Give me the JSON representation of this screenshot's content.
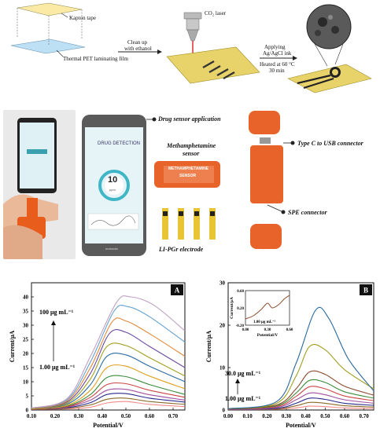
{
  "fabrication": {
    "kapton_label": "Kapton tape",
    "pet_label": "Thermal PET laminating film",
    "cleanup_label_1": "Clean up",
    "cleanup_label_2": "with ethanol",
    "laser_label": "CO₂ laser",
    "apply_label_1": "Applying",
    "apply_label_2": "Ag/AgCl ink",
    "heat_label_1": "Heated at 60 °C",
    "heat_label_2": "30 min"
  },
  "device": {
    "app_label": "Drug sensor application",
    "sensor_label_1": "Methamphetamine",
    "sensor_label_2": "sensor",
    "electrode_label": "LI-PGr electrode",
    "typec_label": "Type C to USB connector",
    "spe_label": "SPE connector",
    "screen_title": "DRUG DETECTION",
    "screen_value": "10",
    "screen_unit": "ppm",
    "brand_text": "motorola",
    "sensor_text_1": "METHAMPHETAMINE",
    "sensor_text_2": "SENSOR"
  },
  "chart_data": [
    {
      "type": "line",
      "panel": "A",
      "xlabel": "Potential/V",
      "ylabel": "Current/μA",
      "xlim": [
        0.1,
        0.75
      ],
      "ylim": [
        0,
        45
      ],
      "xticks": [
        "0.10",
        "0.20",
        "0.30",
        "0.40",
        "0.50",
        "0.60",
        "0.70"
      ],
      "yticks": [
        "0",
        "5",
        "10",
        "15",
        "20",
        "25",
        "30",
        "35",
        "40"
      ],
      "annotation_high": "100 μg mL⁻¹",
      "annotation_low": "1.00 μg mL⁻¹",
      "series": [
        {
          "color": "#f28a8a",
          "values": [
            [
              0.1,
              0.2
            ],
            [
              0.25,
              0.4
            ],
            [
              0.35,
              1.0
            ],
            [
              0.42,
              2.5
            ],
            [
              0.5,
              3.0
            ],
            [
              0.6,
              2.0
            ],
            [
              0.75,
              1.2
            ]
          ]
        },
        {
          "color": "#8a6a2a",
          "values": [
            [
              0.1,
              0.2
            ],
            [
              0.25,
              0.6
            ],
            [
              0.35,
              1.8
            ],
            [
              0.42,
              3.8
            ],
            [
              0.5,
              4.2
            ],
            [
              0.6,
              3.0
            ],
            [
              0.75,
              2.0
            ]
          ]
        },
        {
          "color": "#2a2a8a",
          "values": [
            [
              0.1,
              0.3
            ],
            [
              0.25,
              0.8
            ],
            [
              0.35,
              2.6
            ],
            [
              0.42,
              5.5
            ],
            [
              0.5,
              5.8
            ],
            [
              0.6,
              4.2
            ],
            [
              0.75,
              2.8
            ]
          ]
        },
        {
          "color": "#a050a0",
          "values": [
            [
              0.1,
              0.3
            ],
            [
              0.25,
              1.0
            ],
            [
              0.35,
              3.5
            ],
            [
              0.42,
              7.0
            ],
            [
              0.5,
              7.3
            ],
            [
              0.6,
              5.4
            ],
            [
              0.75,
              3.5
            ]
          ]
        },
        {
          "color": "#cc4444",
          "values": [
            [
              0.1,
              0.3
            ],
            [
              0.25,
              1.2
            ],
            [
              0.35,
              4.5
            ],
            [
              0.42,
              9.0
            ],
            [
              0.5,
              9.3
            ],
            [
              0.6,
              7.0
            ],
            [
              0.75,
              4.5
            ]
          ]
        },
        {
          "color": "#3c8c3c",
          "values": [
            [
              0.1,
              0.4
            ],
            [
              0.25,
              1.4
            ],
            [
              0.35,
              5.5
            ],
            [
              0.42,
              11.5
            ],
            [
              0.5,
              11.8
            ],
            [
              0.6,
              9.0
            ],
            [
              0.75,
              5.5
            ]
          ]
        },
        {
          "color": "#e0a020",
          "values": [
            [
              0.1,
              0.4
            ],
            [
              0.25,
              1.6
            ],
            [
              0.35,
              7.0
            ],
            [
              0.42,
              15.0
            ],
            [
              0.5,
              15.5
            ],
            [
              0.6,
              12.0
            ],
            [
              0.75,
              7.5
            ]
          ]
        },
        {
          "color": "#2a6aa0",
          "values": [
            [
              0.1,
              0.5
            ],
            [
              0.25,
              2.0
            ],
            [
              0.35,
              9.0
            ],
            [
              0.42,
              19.0
            ],
            [
              0.5,
              19.5
            ],
            [
              0.6,
              15.5
            ],
            [
              0.75,
              10.0
            ]
          ]
        },
        {
          "color": "#a0a020",
          "values": [
            [
              0.1,
              0.5
            ],
            [
              0.25,
              2.4
            ],
            [
              0.35,
              11.0
            ],
            [
              0.42,
              22.5
            ],
            [
              0.5,
              22.8
            ],
            [
              0.6,
              18.5
            ],
            [
              0.75,
              12.0
            ]
          ]
        },
        {
          "color": "#6a4aa0",
          "values": [
            [
              0.1,
              0.6
            ],
            [
              0.25,
              2.8
            ],
            [
              0.35,
              13.0
            ],
            [
              0.43,
              27.0
            ],
            [
              0.5,
              27.5
            ],
            [
              0.6,
              22.5
            ],
            [
              0.75,
              15.0
            ]
          ]
        },
        {
          "color": "#e08a3c",
          "values": [
            [
              0.1,
              0.6
            ],
            [
              0.25,
              3.2
            ],
            [
              0.35,
              15.0
            ],
            [
              0.44,
              31.0
            ],
            [
              0.5,
              31.5
            ],
            [
              0.6,
              27.0
            ],
            [
              0.75,
              19.0
            ]
          ]
        },
        {
          "color": "#60a0d0",
          "values": [
            [
              0.1,
              0.7
            ],
            [
              0.25,
              3.6
            ],
            [
              0.35,
              17.0
            ],
            [
              0.45,
              35.0
            ],
            [
              0.51,
              36.5
            ],
            [
              0.6,
              33.0
            ],
            [
              0.75,
              24.0
            ]
          ]
        },
        {
          "color": "#c0a0c0",
          "values": [
            [
              0.1,
              0.7
            ],
            [
              0.25,
              4.0
            ],
            [
              0.35,
              19.0
            ],
            [
              0.46,
              38.0
            ],
            [
              0.52,
              40.0
            ],
            [
              0.62,
              37.0
            ],
            [
              0.75,
              28.0
            ]
          ]
        }
      ]
    },
    {
      "type": "line",
      "panel": "B",
      "xlabel": "Potential/V",
      "ylabel": "Current/μA",
      "xlim": [
        0.0,
        0.75
      ],
      "ylim": [
        0,
        30
      ],
      "xticks": [
        "0.00",
        "0.10",
        "0.20",
        "0.30",
        "0.40",
        "0.50",
        "0.60",
        "0.70"
      ],
      "yticks": [
        "0",
        "10",
        "20",
        "30"
      ],
      "annotation_high": "30.0 μg mL⁻¹",
      "annotation_low": "1.00 μg mL⁻¹",
      "series": [
        {
          "color": "#f28a8a",
          "values": [
            [
              0.0,
              0.1
            ],
            [
              0.25,
              0.2
            ],
            [
              0.35,
              0.5
            ],
            [
              0.42,
              0.9
            ],
            [
              0.5,
              0.8
            ],
            [
              0.6,
              0.5
            ],
            [
              0.75,
              0.4
            ]
          ]
        },
        {
          "color": "#8a6a2a",
          "values": [
            [
              0.0,
              0.1
            ],
            [
              0.25,
              0.3
            ],
            [
              0.35,
              1.0
            ],
            [
              0.42,
              1.8
            ],
            [
              0.5,
              1.6
            ],
            [
              0.6,
              1.0
            ],
            [
              0.75,
              0.7
            ]
          ]
        },
        {
          "color": "#2a2a8a",
          "values": [
            [
              0.0,
              0.1
            ],
            [
              0.25,
              0.4
            ],
            [
              0.35,
              1.6
            ],
            [
              0.42,
              2.8
            ],
            [
              0.5,
              2.5
            ],
            [
              0.6,
              1.6
            ],
            [
              0.75,
              1.1
            ]
          ]
        },
        {
          "color": "#a050a0",
          "values": [
            [
              0.0,
              0.1
            ],
            [
              0.25,
              0.6
            ],
            [
              0.35,
              2.4
            ],
            [
              0.42,
              4.0
            ],
            [
              0.5,
              3.6
            ],
            [
              0.6,
              2.4
            ],
            [
              0.75,
              1.6
            ]
          ]
        },
        {
          "color": "#cc4444",
          "values": [
            [
              0.0,
              0.2
            ],
            [
              0.25,
              0.8
            ],
            [
              0.35,
              3.2
            ],
            [
              0.42,
              5.5
            ],
            [
              0.5,
              5.0
            ],
            [
              0.6,
              3.3
            ],
            [
              0.75,
              2.2
            ]
          ]
        },
        {
          "color": "#3c8c3c",
          "values": [
            [
              0.0,
              0.2
            ],
            [
              0.25,
              1.0
            ],
            [
              0.35,
              4.0
            ],
            [
              0.42,
              7.0
            ],
            [
              0.5,
              6.5
            ],
            [
              0.6,
              4.3
            ],
            [
              0.75,
              2.8
            ]
          ]
        },
        {
          "color": "#8a4a2a",
          "values": [
            [
              0.0,
              0.2
            ],
            [
              0.25,
              1.2
            ],
            [
              0.35,
              5.0
            ],
            [
              0.42,
              9.0
            ],
            [
              0.5,
              8.4
            ],
            [
              0.6,
              5.6
            ],
            [
              0.75,
              3.5
            ]
          ]
        },
        {
          "color": "#a0a020",
          "values": [
            [
              0.0,
              0.3
            ],
            [
              0.25,
              1.6
            ],
            [
              0.35,
              8.0
            ],
            [
              0.42,
              15.0
            ],
            [
              0.5,
              14.2
            ],
            [
              0.6,
              9.5
            ],
            [
              0.75,
              5.0
            ]
          ]
        },
        {
          "color": "#2a6aa0",
          "values": [
            [
              0.0,
              0.3
            ],
            [
              0.25,
              2.0
            ],
            [
              0.35,
              11.0
            ],
            [
              0.45,
              23.5
            ],
            [
              0.52,
              21.5
            ],
            [
              0.62,
              12.0
            ],
            [
              0.75,
              4.5
            ]
          ]
        }
      ],
      "inset": {
        "xlabel": "Potential/V",
        "ylabel": "Current/μA",
        "xticks": [
          "0.00",
          "0.30",
          "0.60"
        ],
        "yticks": [
          "-0.20",
          "0.20",
          "0.60"
        ],
        "annotation": "1.00 μg mL⁻¹"
      }
    }
  ]
}
